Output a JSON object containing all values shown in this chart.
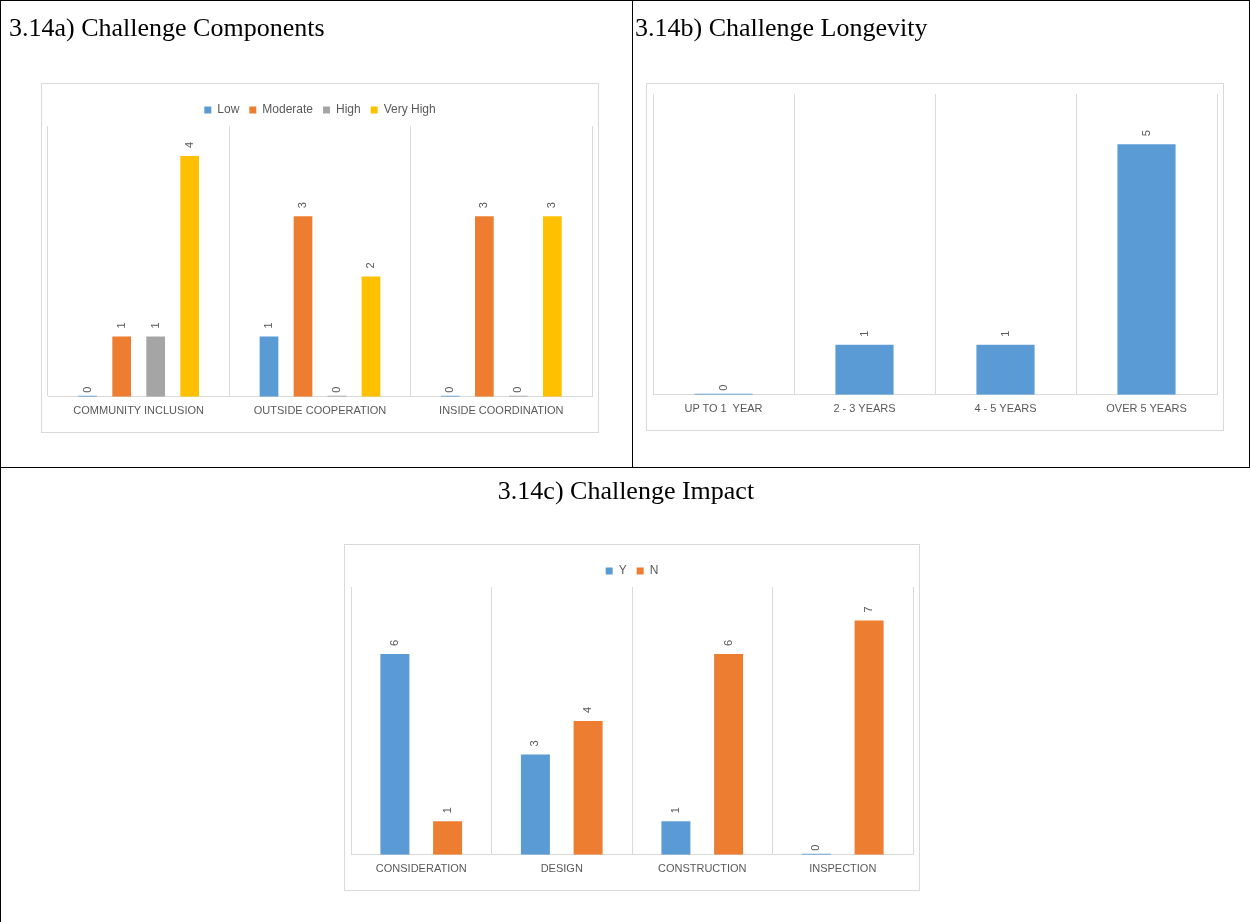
{
  "chart_data": [
    {
      "type": "bar",
      "title": "3.14a) Challenge Components",
      "categories": [
        "COMMUNITY INCLUSION",
        "OUTSIDE COOPERATION",
        "INSIDE COORDINATION"
      ],
      "series": [
        {
          "name": "Low",
          "color": "#5b9bd5",
          "values": [
            0,
            1,
            0
          ]
        },
        {
          "name": "Moderate",
          "color": "#ed7d31",
          "values": [
            1,
            3,
            3
          ]
        },
        {
          "name": "High",
          "color": "#a5a5a5",
          "values": [
            1,
            0,
            0
          ]
        },
        {
          "name": "Very High",
          "color": "#ffc000",
          "values": [
            4,
            2,
            3
          ]
        }
      ],
      "data_labels": true,
      "grid": "x",
      "legend": "top"
    },
    {
      "type": "bar",
      "title": "3.14b) Challenge Longevity",
      "categories": [
        "UP TO 1  YEAR",
        "2 - 3 YEARS",
        "4 - 5 YEARS",
        "OVER 5 YEARS"
      ],
      "values": [
        0,
        1,
        1,
        5
      ],
      "color": "#5b9bd5",
      "data_labels": true,
      "grid": "x"
    },
    {
      "type": "bar",
      "title": "3.14c) Challenge Impact",
      "categories": [
        "CONSIDERATION",
        "DESIGN",
        "CONSTRUCTION",
        "INSPECTION"
      ],
      "series": [
        {
          "name": "Y",
          "color": "#5b9bd5",
          "values": [
            6,
            3,
            1,
            0
          ]
        },
        {
          "name": "N",
          "color": "#ed7d31",
          "values": [
            1,
            4,
            6,
            7
          ]
        }
      ],
      "data_labels": true,
      "grid": "x",
      "legend": "top"
    }
  ]
}
